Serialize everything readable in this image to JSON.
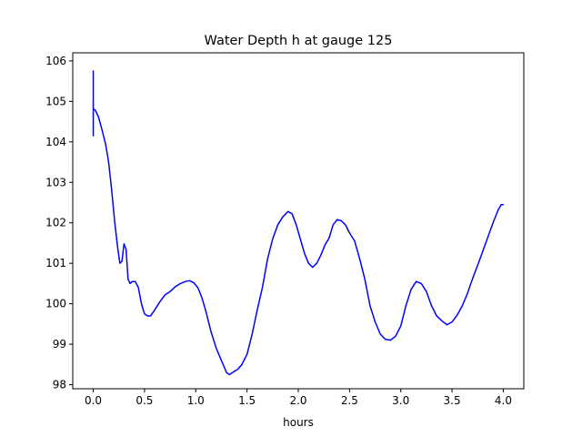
{
  "chart_data": {
    "type": "line",
    "title": "Water Depth h at gauge 125",
    "xlabel": "hours",
    "ylabel": "",
    "xlim": [
      -0.2,
      4.2
    ],
    "ylim": [
      97.9,
      106.2
    ],
    "xticks": [
      0.0,
      0.5,
      1.0,
      1.5,
      2.0,
      2.5,
      3.0,
      3.5,
      4.0
    ],
    "xtick_labels": [
      "0.0",
      "0.5",
      "1.0",
      "1.5",
      "2.0",
      "2.5",
      "3.0",
      "3.5",
      "4.0"
    ],
    "yticks": [
      98,
      99,
      100,
      101,
      102,
      103,
      104,
      105,
      106
    ],
    "ytick_labels": [
      "98",
      "99",
      "100",
      "101",
      "102",
      "103",
      "104",
      "105",
      "106"
    ],
    "grid": false,
    "series": [
      {
        "color": "#0000ff",
        "x": [
          0.0,
          0.0,
          0.0,
          0.0,
          0.02,
          0.05,
          0.08,
          0.12,
          0.15,
          0.18,
          0.21,
          0.24,
          0.26,
          0.28,
          0.3,
          0.32,
          0.34,
          0.36,
          0.38,
          0.41,
          0.44,
          0.47,
          0.5,
          0.53,
          0.56,
          0.6,
          0.65,
          0.7,
          0.75,
          0.8,
          0.85,
          0.9,
          0.94,
          0.98,
          1.02,
          1.06,
          1.1,
          1.15,
          1.2,
          1.25,
          1.3,
          1.33,
          1.37,
          1.41,
          1.45,
          1.5,
          1.55,
          1.6,
          1.65,
          1.7,
          1.75,
          1.8,
          1.85,
          1.9,
          1.94,
          1.98,
          2.02,
          2.06,
          2.1,
          2.14,
          2.18,
          2.22,
          2.26,
          2.3,
          2.34,
          2.38,
          2.42,
          2.46,
          2.5,
          2.55,
          2.6,
          2.65,
          2.7,
          2.75,
          2.8,
          2.85,
          2.9,
          2.95,
          3.0,
          3.05,
          3.1,
          3.15,
          3.2,
          3.25,
          3.3,
          3.35,
          3.4,
          3.45,
          3.5,
          3.55,
          3.6,
          3.65,
          3.7,
          3.75,
          3.8,
          3.85,
          3.9,
          3.95,
          3.98,
          4.0
        ],
        "y": [
          104.15,
          105.75,
          104.85,
          104.82,
          104.78,
          104.62,
          104.35,
          103.95,
          103.5,
          102.8,
          102.0,
          101.35,
          101.0,
          101.05,
          101.48,
          101.35,
          100.6,
          100.5,
          100.55,
          100.55,
          100.4,
          100.0,
          99.75,
          99.7,
          99.7,
          99.85,
          100.05,
          100.22,
          100.3,
          100.42,
          100.5,
          100.55,
          100.57,
          100.52,
          100.4,
          100.15,
          99.8,
          99.3,
          98.9,
          98.6,
          98.3,
          98.25,
          98.32,
          98.38,
          98.5,
          98.75,
          99.25,
          99.85,
          100.4,
          101.1,
          101.6,
          101.95,
          102.15,
          102.28,
          102.22,
          101.95,
          101.6,
          101.25,
          101.0,
          100.9,
          101.0,
          101.2,
          101.45,
          101.62,
          101.95,
          102.08,
          102.05,
          101.95,
          101.75,
          101.55,
          101.1,
          100.6,
          99.95,
          99.55,
          99.25,
          99.12,
          99.1,
          99.2,
          99.45,
          99.95,
          100.35,
          100.55,
          100.5,
          100.3,
          99.95,
          99.7,
          99.58,
          99.48,
          99.55,
          99.72,
          99.95,
          100.25,
          100.62,
          100.95,
          101.3,
          101.65,
          102.0,
          102.32,
          102.45,
          102.45
        ]
      }
    ]
  }
}
